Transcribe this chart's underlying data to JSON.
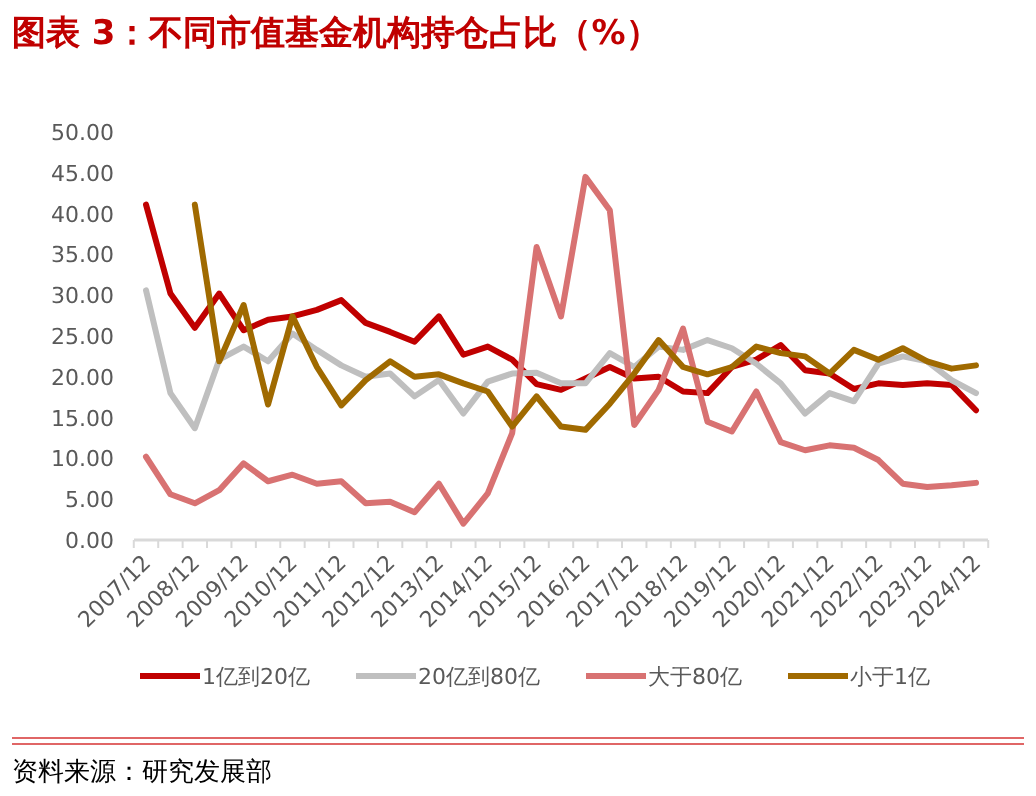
{
  "chart_data": {
    "type": "line",
    "title": "图表 3：不同市值基金机构持仓占比（%）",
    "categories": [
      "2007/12",
      null,
      "2008/12",
      null,
      "2009/12",
      null,
      "2010/12",
      null,
      "2011/12",
      null,
      "2012/12",
      null,
      "2013/12",
      null,
      "2014/12",
      null,
      "2015/12",
      null,
      "2016/12",
      null,
      "2017/12",
      null,
      "2018/12",
      null,
      "2019/12",
      null,
      "2020/12",
      null,
      "2021/12",
      null,
      "2022/12",
      null,
      "2023/12",
      null,
      "2024/12"
    ],
    "series": [
      {
        "name": "1亿到20亿",
        "color": "#c00000",
        "values": [
          41.1,
          30.2,
          26.0,
          30.2,
          25.7,
          27.0,
          27.4,
          28.2,
          29.4,
          26.6,
          25.5,
          24.3,
          27.4,
          22.7,
          23.7,
          22.1,
          19.1,
          18.4,
          19.8,
          21.2,
          19.8,
          20.0,
          18.2,
          18.0,
          21.2,
          22.1,
          23.9,
          20.8,
          20.4,
          18.5,
          19.2,
          19.0,
          19.2,
          19.0,
          15.9
        ]
      },
      {
        "name": "20亿到80亿",
        "color": "#bfbfbf",
        "values": [
          30.6,
          18.0,
          13.7,
          22.1,
          23.7,
          21.9,
          25.3,
          23.3,
          21.4,
          20.0,
          20.4,
          17.6,
          19.6,
          15.5,
          19.4,
          20.4,
          20.5,
          19.2,
          19.2,
          22.9,
          21.2,
          23.7,
          23.3,
          24.5,
          23.5,
          21.6,
          19.2,
          15.5,
          18.0,
          17.0,
          21.6,
          22.5,
          21.9,
          19.6,
          18.0
        ]
      },
      {
        "name": "大于80亿",
        "color": "#d87272",
        "values": [
          10.2,
          5.6,
          4.5,
          6.1,
          9.4,
          7.2,
          8.0,
          6.9,
          7.2,
          4.5,
          4.7,
          3.4,
          6.9,
          2.0,
          5.7,
          13.1,
          35.9,
          27.4,
          44.5,
          40.4,
          14.1,
          18.4,
          25.9,
          14.5,
          13.3,
          18.2,
          12.0,
          11.0,
          11.6,
          11.3,
          9.8,
          6.9,
          6.5,
          6.7,
          7.0
        ]
      },
      {
        "name": "小于1亿",
        "color": "#a06a00",
        "values": [
          null,
          null,
          41.1,
          21.9,
          28.8,
          16.6,
          27.4,
          21.2,
          16.5,
          19.6,
          21.9,
          20.0,
          20.3,
          19.2,
          18.2,
          13.9,
          17.6,
          13.9,
          13.5,
          16.7,
          20.4,
          24.5,
          21.2,
          20.3,
          21.2,
          23.7,
          22.9,
          22.5,
          20.4,
          23.3,
          22.1,
          23.5,
          21.9,
          21.0,
          21.4
        ]
      }
    ],
    "ylim": [
      0,
      50
    ],
    "yticks": [
      {
        "value": 0,
        "label": "0.00"
      },
      {
        "value": 5,
        "label": "5.00"
      },
      {
        "value": 10,
        "label": "10.00"
      },
      {
        "value": 15,
        "label": "15.00"
      },
      {
        "value": 20,
        "label": "20.00"
      },
      {
        "value": 25,
        "label": "25.00"
      },
      {
        "value": 30,
        "label": "30.00"
      },
      {
        "value": 35,
        "label": "35.00"
      },
      {
        "value": 40,
        "label": "40.00"
      },
      {
        "value": 45,
        "label": "45.00"
      },
      {
        "value": 50,
        "label": "50.00"
      }
    ],
    "grid": false,
    "legend": "bottom",
    "marker": "none",
    "line_style": "solid",
    "annotations": [
      "资料来源：研究发展部"
    ]
  }
}
